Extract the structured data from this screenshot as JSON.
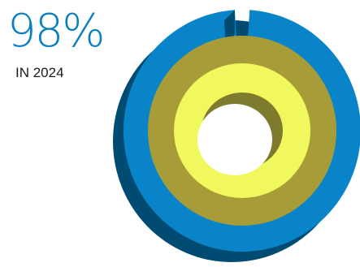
{
  "stat": {
    "value": "98%",
    "caption": "IN 2024"
  },
  "chart_data": {
    "type": "pie",
    "style": "3d-concentric-rings",
    "title": "",
    "rings": [
      {
        "level": "outer",
        "value": 98,
        "color": "#0a84c8",
        "side_color": "#004b72"
      },
      {
        "level": "middle",
        "value": 100,
        "color": "#a79c38",
        "side_color": "#6f6a1e"
      },
      {
        "level": "inner",
        "value": 100,
        "color": "#f0f85e",
        "side_color": "#7e7b2e"
      }
    ]
  }
}
